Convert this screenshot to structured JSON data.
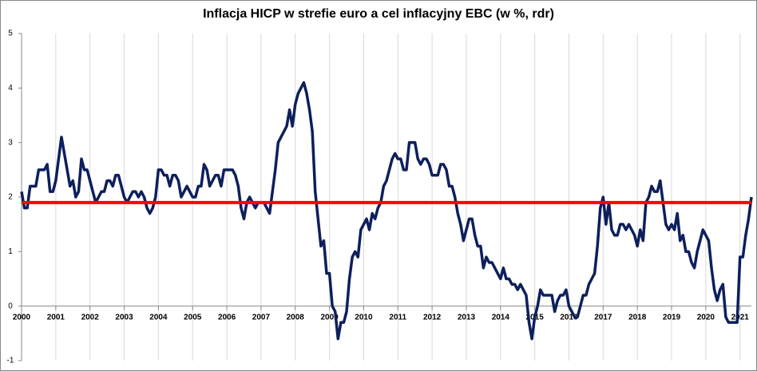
{
  "chart_data": {
    "type": "line",
    "title": "Inflacja HICP w strefie euro a cel inflacyjny EBC (w %, rdr)",
    "categories": [
      "2000",
      null,
      null,
      null,
      null,
      null,
      null,
      null,
      null,
      null,
      null,
      null,
      "2001",
      null,
      null,
      null,
      null,
      null,
      null,
      null,
      null,
      null,
      null,
      null,
      "2002",
      null,
      null,
      null,
      null,
      null,
      null,
      null,
      null,
      null,
      null,
      null,
      "2003",
      null,
      null,
      null,
      null,
      null,
      null,
      null,
      null,
      null,
      null,
      null,
      "2004",
      null,
      null,
      null,
      null,
      null,
      null,
      null,
      null,
      null,
      null,
      null,
      "2005",
      null,
      null,
      null,
      null,
      null,
      null,
      null,
      null,
      null,
      null,
      null,
      "2006",
      null,
      null,
      null,
      null,
      null,
      null,
      null,
      null,
      null,
      null,
      null,
      "2007",
      null,
      null,
      null,
      null,
      null,
      null,
      null,
      null,
      null,
      null,
      null,
      "2008",
      null,
      null,
      null,
      null,
      null,
      null,
      null,
      null,
      null,
      null,
      null,
      "2009",
      null,
      null,
      null,
      null,
      null,
      null,
      null,
      null,
      null,
      null,
      null,
      "2010",
      null,
      null,
      null,
      null,
      null,
      null,
      null,
      null,
      null,
      null,
      null,
      "2011",
      null,
      null,
      null,
      null,
      null,
      null,
      null,
      null,
      null,
      null,
      null,
      "2012",
      null,
      null,
      null,
      null,
      null,
      null,
      null,
      null,
      null,
      null,
      null,
      "2013",
      null,
      null,
      null,
      null,
      null,
      null,
      null,
      null,
      null,
      null,
      null,
      "2014",
      null,
      null,
      null,
      null,
      null,
      null,
      null,
      null,
      null,
      null,
      null,
      "2015",
      null,
      null,
      null,
      null,
      null,
      null,
      null,
      null,
      null,
      null,
      null,
      "2016",
      null,
      null,
      null,
      null,
      null,
      null,
      null,
      null,
      null,
      null,
      null,
      "2017",
      null,
      null,
      null,
      null,
      null,
      null,
      null,
      null,
      null,
      null,
      null,
      "2018",
      null,
      null,
      null,
      null,
      null,
      null,
      null,
      null,
      null,
      null,
      null,
      "2019",
      null,
      null,
      null,
      null,
      null,
      null,
      null,
      null,
      null,
      null,
      null,
      "2020",
      null,
      null,
      null,
      null,
      null,
      null,
      null,
      null,
      null,
      null,
      null,
      "2021",
      null,
      null,
      null,
      null
    ],
    "series": [
      {
        "color": "#0d1f5c",
        "values": [
          2.1,
          1.8,
          1.8,
          2.2,
          2.2,
          2.2,
          2.5,
          2.5,
          2.5,
          2.6,
          2.1,
          2.1,
          2.3,
          2.7,
          3.1,
          2.8,
          2.5,
          2.2,
          2.3,
          2.0,
          2.1,
          2.7,
          2.5,
          2.5,
          2.3,
          2.1,
          1.9,
          2.0,
          2.1,
          2.1,
          2.3,
          2.3,
          2.2,
          2.4,
          2.4,
          2.2,
          2.0,
          1.9,
          2.0,
          2.1,
          2.1,
          2.0,
          2.1,
          2.0,
          1.8,
          1.7,
          1.8,
          2.0,
          2.5,
          2.5,
          2.4,
          2.4,
          2.2,
          2.4,
          2.4,
          2.3,
          2.0,
          2.1,
          2.2,
          2.1,
          2.0,
          2.0,
          2.2,
          2.2,
          2.6,
          2.5,
          2.2,
          2.3,
          2.4,
          2.4,
          2.2,
          2.5,
          2.5,
          2.5,
          2.5,
          2.4,
          2.2,
          1.8,
          1.6,
          1.9,
          2.0,
          1.9,
          1.8,
          1.9,
          1.9,
          1.9,
          1.8,
          1.7,
          2.1,
          2.5,
          3.0,
          3.1,
          3.2,
          3.3,
          3.6,
          3.3,
          3.7,
          3.9,
          4.0,
          4.1,
          3.9,
          3.6,
          3.2,
          2.1,
          1.6,
          1.1,
          1.2,
          0.6,
          0.6,
          0.0,
          -0.1,
          -0.6,
          -0.3,
          -0.3,
          -0.1,
          0.5,
          0.9,
          1.0,
          0.9,
          1.4,
          1.5,
          1.6,
          1.4,
          1.7,
          1.6,
          1.8,
          1.9,
          2.2,
          2.3,
          2.5,
          2.7,
          2.8,
          2.7,
          2.7,
          2.5,
          2.5,
          3.0,
          3.0,
          3.0,
          2.7,
          2.6,
          2.7,
          2.7,
          2.6,
          2.4,
          2.4,
          2.4,
          2.6,
          2.6,
          2.5,
          2.2,
          2.2,
          2.0,
          1.7,
          1.5,
          1.2,
          1.4,
          1.6,
          1.6,
          1.3,
          1.1,
          1.1,
          0.7,
          0.9,
          0.8,
          0.8,
          0.7,
          0.6,
          0.5,
          0.7,
          0.5,
          0.5,
          0.4,
          0.4,
          0.3,
          0.4,
          0.3,
          0.2,
          -0.3,
          -0.6,
          -0.2,
          0.0,
          0.3,
          0.2,
          0.2,
          0.2,
          0.2,
          -0.1,
          0.1,
          0.2,
          0.2,
          0.3,
          0.0,
          -0.1,
          -0.2,
          -0.2,
          0.0,
          0.2,
          0.2,
          0.4,
          0.5,
          0.6,
          1.1,
          1.8,
          2.0,
          1.5,
          1.9,
          1.4,
          1.3,
          1.3,
          1.5,
          1.5,
          1.4,
          1.5,
          1.4,
          1.3,
          1.1,
          1.4,
          1.2,
          1.9,
          2.0,
          2.2,
          2.1,
          2.1,
          2.3,
          1.9,
          1.5,
          1.4,
          1.5,
          1.4,
          1.7,
          1.2,
          1.3,
          1.0,
          1.0,
          0.8,
          0.7,
          1.0,
          1.2,
          1.4,
          1.3,
          1.2,
          0.7,
          0.3,
          0.1,
          0.3,
          0.4,
          -0.2,
          -0.3,
          -0.3,
          -0.3,
          -0.3,
          0.9,
          0.9,
          1.3,
          1.6,
          2.0
        ]
      }
    ],
    "reference_line": {
      "value": 1.9,
      "color": "#ff0000"
    },
    "ylim": [
      -1,
      5
    ],
    "yticks": [
      -1,
      0,
      1,
      2,
      3,
      4,
      5
    ],
    "grid": true
  }
}
